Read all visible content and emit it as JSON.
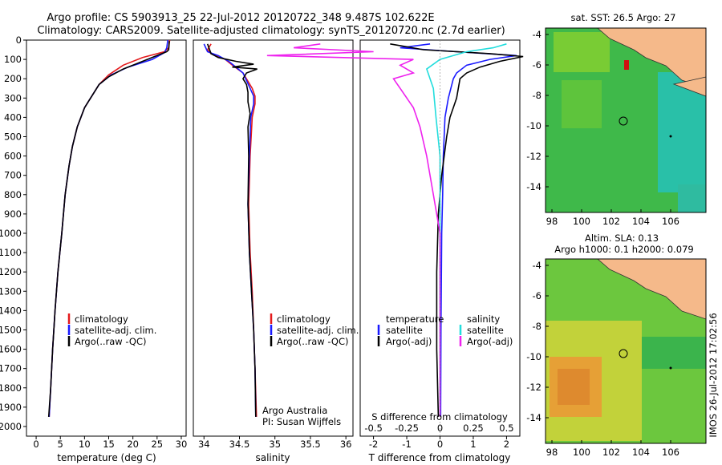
{
  "header": {
    "title_line1": "Argo profile: CS 5903913_25 22-Jul-2012 20120722_348 9.487S 102.622E",
    "title_line2": "Climatology: CARS2009. Satellite-adjusted climatology: synTS_20120720.nc (2.7d earlier)"
  },
  "colors": {
    "climatology": "#e41a1c",
    "satellite": "#1a1aff",
    "argo": "#000000",
    "sat_s": "#22dddd",
    "argo_s": "#ee22ee",
    "land": "#f5b98a"
  },
  "depth_ticks": [
    0,
    100,
    200,
    300,
    400,
    500,
    600,
    700,
    800,
    900,
    1000,
    1100,
    1200,
    1300,
    1400,
    1500,
    1600,
    1700,
    1800,
    1900,
    2000
  ],
  "panels": {
    "temperature": {
      "xlabel": "temperature (deg C)",
      "xticks": [
        "0",
        "5",
        "10",
        "15",
        "20",
        "25",
        "30"
      ],
      "legend": [
        "climatology",
        "satellite-adj. clim.",
        "Argo(..raw -QC)"
      ]
    },
    "salinity": {
      "xlabel": "salinity",
      "xticks": [
        "34",
        "34.5",
        "35",
        "35.5",
        "36"
      ],
      "legend": [
        "climatology",
        "satellite-adj. clim.",
        "Argo(..raw -QC)"
      ],
      "credit1": "Argo Australia",
      "credit2": "PI: Susan Wijffels"
    },
    "difference": {
      "xlabel": "T difference from climatology",
      "xticks_t": [
        "-2",
        "-1",
        "0",
        "1",
        "2"
      ],
      "slabel": "S difference from climatology",
      "xticks_s": [
        "-0.5",
        "-0.25",
        "0",
        "0.25",
        "0.5"
      ],
      "legend_t_head": "temperature",
      "legend_s_head": "salinity",
      "legend_t": [
        "satellite",
        "Argo(-adj)"
      ],
      "legend_s": [
        "satellite",
        "Argo(-adj)"
      ]
    }
  },
  "maps": {
    "sst_title": "sat. SST: 26.5 Argo: 27",
    "sla_title1": "Altim. SLA: 0.13",
    "sla_title2": "Argo h1000: 0.1 h2000: 0.079",
    "lat_ticks": [
      "-4",
      "-6",
      "-8",
      "-10",
      "-12",
      "-14"
    ],
    "lon_ticks": [
      "98",
      "100",
      "102",
      "104",
      "106"
    ]
  },
  "timestamp": "IMOS 26-Jul-2012 17:02:56",
  "chart_data": [
    {
      "type": "line",
      "xlabel": "temperature (deg C)",
      "ylabel": "",
      "xlim": [
        -2,
        31
      ],
      "ylim": [
        2050,
        0
      ],
      "series": [
        {
          "name": "climatology",
          "points": [
            [
              27.6,
              0
            ],
            [
              27.4,
              40
            ],
            [
              26.5,
              60
            ],
            [
              22,
              90
            ],
            [
              18,
              130
            ],
            [
              15,
              180
            ],
            [
              13,
              230
            ],
            [
              11.5,
              290
            ],
            [
              10,
              350
            ],
            [
              8.5,
              450
            ],
            [
              7.5,
              550
            ],
            [
              6.8,
              650
            ],
            [
              6,
              800
            ],
            [
              5.3,
              1000
            ],
            [
              4.5,
              1200
            ],
            [
              3.9,
              1400
            ],
            [
              3.4,
              1600
            ],
            [
              3.0,
              1800
            ],
            [
              2.7,
              1950
            ]
          ]
        },
        {
          "name": "satellite-adj. clim.",
          "points": [
            [
              27.2,
              0
            ],
            [
              27.0,
              40
            ],
            [
              26.5,
              65
            ],
            [
              24,
              100
            ],
            [
              19,
              140
            ],
            [
              15.5,
              180
            ],
            [
              13,
              230
            ],
            [
              11.5,
              290
            ],
            [
              10,
              350
            ],
            [
              8.5,
              450
            ],
            [
              7.5,
              550
            ],
            [
              6.8,
              650
            ],
            [
              6,
              800
            ],
            [
              5.3,
              1000
            ],
            [
              4.5,
              1200
            ],
            [
              3.9,
              1400
            ],
            [
              3.4,
              1600
            ],
            [
              3.0,
              1800
            ],
            [
              2.7,
              1950
            ]
          ]
        },
        {
          "name": "Argo(..raw -QC)",
          "points": [
            [
              27.5,
              5
            ],
            [
              27.4,
              50
            ],
            [
              27,
              60
            ],
            [
              25,
              80
            ],
            [
              22,
              110
            ],
            [
              18,
              150
            ],
            [
              15,
              190
            ],
            [
              13,
              230
            ],
            [
              11.5,
              290
            ],
            [
              10,
              350
            ],
            [
              8.5,
              450
            ],
            [
              7.5,
              550
            ],
            [
              6.8,
              650
            ],
            [
              6,
              800
            ],
            [
              5.3,
              1000
            ],
            [
              4.5,
              1200
            ],
            [
              3.9,
              1400
            ],
            [
              3.4,
              1600
            ],
            [
              3.0,
              1800
            ],
            [
              2.6,
              1950
            ]
          ]
        }
      ]
    },
    {
      "type": "line",
      "xlabel": "salinity",
      "xlim": [
        33.85,
        36.1
      ],
      "ylim": [
        2050,
        0
      ],
      "series": [
        {
          "name": "climatology",
          "points": [
            [
              34.1,
              20
            ],
            [
              34.05,
              50
            ],
            [
              34.1,
              70
            ],
            [
              34.3,
              100
            ],
            [
              34.4,
              130
            ],
            [
              34.55,
              170
            ],
            [
              34.68,
              250
            ],
            [
              34.72,
              290
            ],
            [
              34.72,
              330
            ],
            [
              34.68,
              400
            ],
            [
              34.65,
              600
            ],
            [
              34.63,
              850
            ],
            [
              34.65,
              1100
            ],
            [
              34.68,
              1300
            ],
            [
              34.7,
              1500
            ],
            [
              34.72,
              1700
            ],
            [
              34.74,
              1950
            ]
          ]
        },
        {
          "name": "satellite-adj. clim.",
          "points": [
            [
              34.0,
              20
            ],
            [
              34.05,
              60
            ],
            [
              34.2,
              80
            ],
            [
              34.35,
              110
            ],
            [
              34.45,
              140
            ],
            [
              34.55,
              170
            ],
            [
              34.65,
              250
            ],
            [
              34.7,
              290
            ],
            [
              34.7,
              330
            ],
            [
              34.66,
              400
            ],
            [
              34.64,
              600
            ],
            [
              34.62,
              850
            ],
            [
              34.64,
              1100
            ],
            [
              34.67,
              1300
            ],
            [
              34.7,
              1500
            ],
            [
              34.72,
              1700
            ],
            [
              34.73,
              1950
            ]
          ]
        },
        {
          "name": "Argo(..raw -QC)",
          "points": [
            [
              34.05,
              20
            ],
            [
              34.1,
              70
            ],
            [
              34.2,
              90
            ],
            [
              34.45,
              110
            ],
            [
              34.7,
              125
            ],
            [
              34.4,
              140
            ],
            [
              34.75,
              150
            ],
            [
              34.6,
              170
            ],
            [
              34.55,
              200
            ],
            [
              34.6,
              230
            ],
            [
              34.62,
              270
            ],
            [
              34.62,
              320
            ],
            [
              34.65,
              380
            ],
            [
              34.62,
              450
            ],
            [
              34.63,
              600
            ],
            [
              34.62,
              850
            ],
            [
              34.64,
              1100
            ],
            [
              34.67,
              1300
            ],
            [
              34.7,
              1500
            ],
            [
              34.72,
              1700
            ],
            [
              34.73,
              1950
            ]
          ]
        }
      ]
    },
    {
      "type": "line",
      "xlabel": "T difference from climatology",
      "xlim": [
        -2.4,
        2.4
      ],
      "ylim": [
        2050,
        0
      ],
      "series": [
        {
          "name": "satellite (temperature)",
          "points": [
            [
              -0.3,
              20
            ],
            [
              -1.2,
              40
            ],
            [
              0.5,
              60
            ],
            [
              2.3,
              80
            ],
            [
              1.5,
              100
            ],
            [
              0.8,
              130
            ],
            [
              0.5,
              170
            ],
            [
              0.4,
              200
            ],
            [
              0.25,
              300
            ],
            [
              0.15,
              400
            ],
            [
              0.1,
              600
            ],
            [
              0.08,
              800
            ],
            [
              0.05,
              1000
            ],
            [
              0.03,
              1500
            ],
            [
              0.02,
              1950
            ]
          ]
        },
        {
          "name": "Argo(-adj) (temperature)",
          "points": [
            [
              -1.5,
              20
            ],
            [
              -0.5,
              50
            ],
            [
              1.5,
              70
            ],
            [
              2.5,
              85
            ],
            [
              1.8,
              110
            ],
            [
              1.2,
              140
            ],
            [
              0.8,
              170
            ],
            [
              0.6,
              200
            ],
            [
              0.55,
              250
            ],
            [
              0.5,
              300
            ],
            [
              0.4,
              350
            ],
            [
              0.3,
              400
            ],
            [
              0.2,
              500
            ],
            [
              0.05,
              700
            ],
            [
              -0.05,
              900
            ],
            [
              -0.1,
              1200
            ],
            [
              -0.1,
              1600
            ],
            [
              -0.05,
              1950
            ]
          ]
        },
        {
          "name": "satellite (salinity)",
          "points": [
            [
              0.5,
              20
            ],
            [
              0.4,
              40
            ],
            [
              0.2,
              60
            ],
            [
              0.0,
              100
            ],
            [
              -0.1,
              150
            ],
            [
              -0.05,
              250
            ],
            [
              -0.03,
              400
            ],
            [
              0.0,
              600
            ],
            [
              0.0,
              1000
            ],
            [
              0.0,
              1950
            ]
          ]
        },
        {
          "name": "Argo(-adj) (salinity)",
          "points": [
            [
              -0.9,
              20
            ],
            [
              -1.1,
              40
            ],
            [
              -0.5,
              60
            ],
            [
              -1.3,
              80
            ],
            [
              -0.2,
              100
            ],
            [
              -0.3,
              130
            ],
            [
              -0.2,
              170
            ],
            [
              -0.35,
              200
            ],
            [
              -0.3,
              250
            ],
            [
              -0.2,
              350
            ],
            [
              -0.15,
              450
            ],
            [
              -0.1,
              600
            ],
            [
              -0.05,
              800
            ],
            [
              0.0,
              1000
            ],
            [
              0.0,
              1950
            ]
          ]
        }
      ]
    }
  ]
}
